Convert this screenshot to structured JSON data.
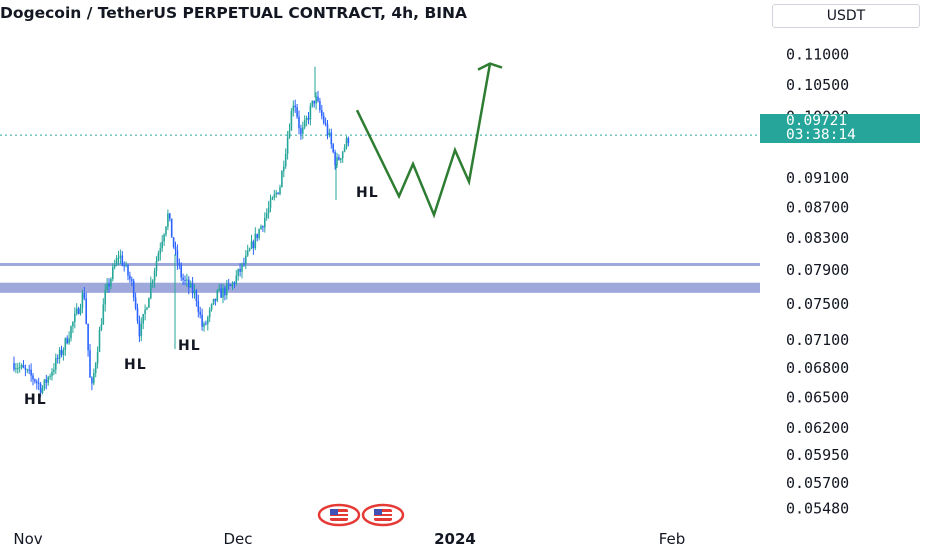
{
  "header": {
    "title": "Dogecoin / TetherUS PERPETUAL CONTRACT, 4h, BINA",
    "currency": "USDT"
  },
  "price_label": {
    "value": "0.09721",
    "countdown": "03:38:14",
    "color": "#26a69a"
  },
  "colors": {
    "up": "#26a69a",
    "down": "#2962ff",
    "zone": "#9fa8da",
    "projection": "#2e7d32"
  },
  "chart_data": {
    "type": "candlestick",
    "title": "Dogecoin / TetherUS PERPETUAL CONTRACT, 4h, BINA",
    "y_axis_labels": [
      "0.11000",
      "0.10500",
      "0.10000",
      "0.09721",
      "0.09100",
      "0.08700",
      "0.08300",
      "0.07900",
      "0.07500",
      "0.07100",
      "0.06800",
      "0.06500",
      "0.06200",
      "0.05950",
      "0.05700",
      "0.05480"
    ],
    "y_scale": "log",
    "ylim": [
      0.0545,
      0.1125
    ],
    "x_axis_labels": [
      "Nov",
      "Dec",
      "2024",
      "Feb"
    ],
    "current_price": 0.09721,
    "support_zone": {
      "line": 0.0797,
      "band_top": 0.0775,
      "band_bottom": 0.0763
    },
    "annotations": [
      "HL",
      "HL",
      "HL",
      "HL"
    ],
    "price_path": [
      {
        "date": "2023-10-30",
        "price": 0.0685
      },
      {
        "date": "2023-11-02",
        "price": 0.0668
      },
      {
        "date": "2023-11-03",
        "price": 0.0658
      },
      {
        "date": "2023-11-06",
        "price": 0.07
      },
      {
        "date": "2023-11-08",
        "price": 0.074
      },
      {
        "date": "2023-11-09",
        "price": 0.0765
      },
      {
        "date": "2023-11-10",
        "price": 0.0652
      },
      {
        "date": "2023-11-12",
        "price": 0.076
      },
      {
        "date": "2023-11-14",
        "price": 0.081
      },
      {
        "date": "2023-11-16",
        "price": 0.077
      },
      {
        "date": "2023-11-17",
        "price": 0.0715
      },
      {
        "date": "2023-11-19",
        "price": 0.079
      },
      {
        "date": "2023-11-21",
        "price": 0.086
      },
      {
        "date": "2023-11-22",
        "price": 0.081
      },
      {
        "date": "2023-11-23",
        "price": 0.078
      },
      {
        "date": "2023-11-25",
        "price": 0.076
      },
      {
        "date": "2023-11-26",
        "price": 0.072
      },
      {
        "date": "2023-11-28",
        "price": 0.076
      },
      {
        "date": "2023-11-30",
        "price": 0.077
      },
      {
        "date": "2023-12-02",
        "price": 0.08
      },
      {
        "date": "2023-12-04",
        "price": 0.084
      },
      {
        "date": "2023-12-07",
        "price": 0.09
      },
      {
        "date": "2023-12-09",
        "price": 0.103
      },
      {
        "date": "2023-12-10",
        "price": 0.097
      },
      {
        "date": "2023-12-12",
        "price": 0.103
      },
      {
        "date": "2023-12-14",
        "price": 0.097
      },
      {
        "date": "2023-12-15",
        "price": 0.093
      },
      {
        "date": "2023-12-17",
        "price": 0.0972
      }
    ],
    "projection_path": [
      {
        "date": "2023-12-18",
        "price": 0.101
      },
      {
        "date": "2023-12-24",
        "price": 0.0885
      },
      {
        "date": "2023-12-26",
        "price": 0.093
      },
      {
        "date": "2023-12-29",
        "price": 0.086
      },
      {
        "date": "2024-01-01",
        "price": 0.095
      },
      {
        "date": "2024-01-03",
        "price": 0.0905
      },
      {
        "date": "2024-01-06",
        "price": 0.1085
      }
    ]
  }
}
